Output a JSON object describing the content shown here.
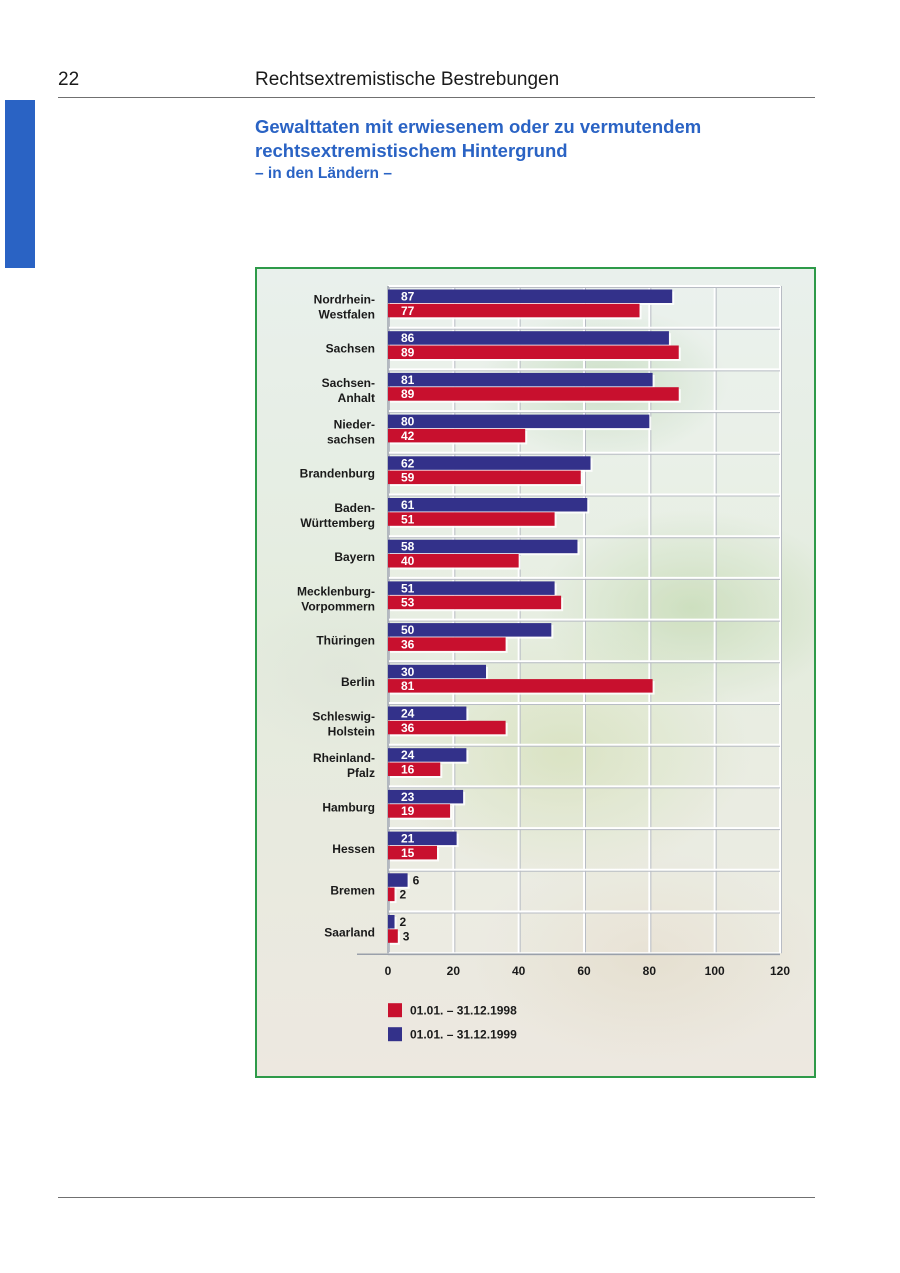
{
  "page": {
    "number": "22",
    "section": "Rechtsextremistische Bestrebungen"
  },
  "chart_data": {
    "type": "bar",
    "orientation": "horizontal",
    "title": "Gewalttaten mit erwiesenem oder zu vermutendem rechtsextremistischem Hintergrund",
    "subtitle": "– in den Ländern –",
    "categories": [
      [
        "Nordrhein-",
        "Westfalen"
      ],
      [
        "Sachsen"
      ],
      [
        "Sachsen-",
        "Anhalt"
      ],
      [
        "Nieder-",
        "sachsen"
      ],
      [
        "Brandenburg"
      ],
      [
        "Baden-",
        "Württemberg"
      ],
      [
        "Bayern"
      ],
      [
        "Mecklenburg-",
        "Vorpommern"
      ],
      [
        "Thüringen"
      ],
      [
        "Berlin"
      ],
      [
        "Schleswig-",
        "Holstein"
      ],
      [
        "Rheinland-",
        "Pfalz"
      ],
      [
        "Hamburg"
      ],
      [
        "Hessen"
      ],
      [
        "Bremen"
      ],
      [
        "Saarland"
      ]
    ],
    "series": [
      {
        "name": "01.01. – 31.12.1999",
        "color": "#33318a",
        "values": [
          87,
          86,
          81,
          80,
          62,
          61,
          58,
          51,
          50,
          30,
          24,
          24,
          23,
          21,
          6,
          2
        ]
      },
      {
        "name": "01.01. – 31.12.1998",
        "color": "#c8102e",
        "values": [
          77,
          89,
          89,
          42,
          59,
          51,
          40,
          53,
          36,
          81,
          36,
          16,
          19,
          15,
          2,
          3
        ]
      }
    ],
    "legend_order": [
      1,
      0
    ],
    "legend_position": "bottom",
    "xlim": [
      0,
      120
    ],
    "xticks": [
      0,
      20,
      40,
      60,
      80,
      100,
      120
    ],
    "grid": true,
    "xlabel": "",
    "ylabel": ""
  }
}
